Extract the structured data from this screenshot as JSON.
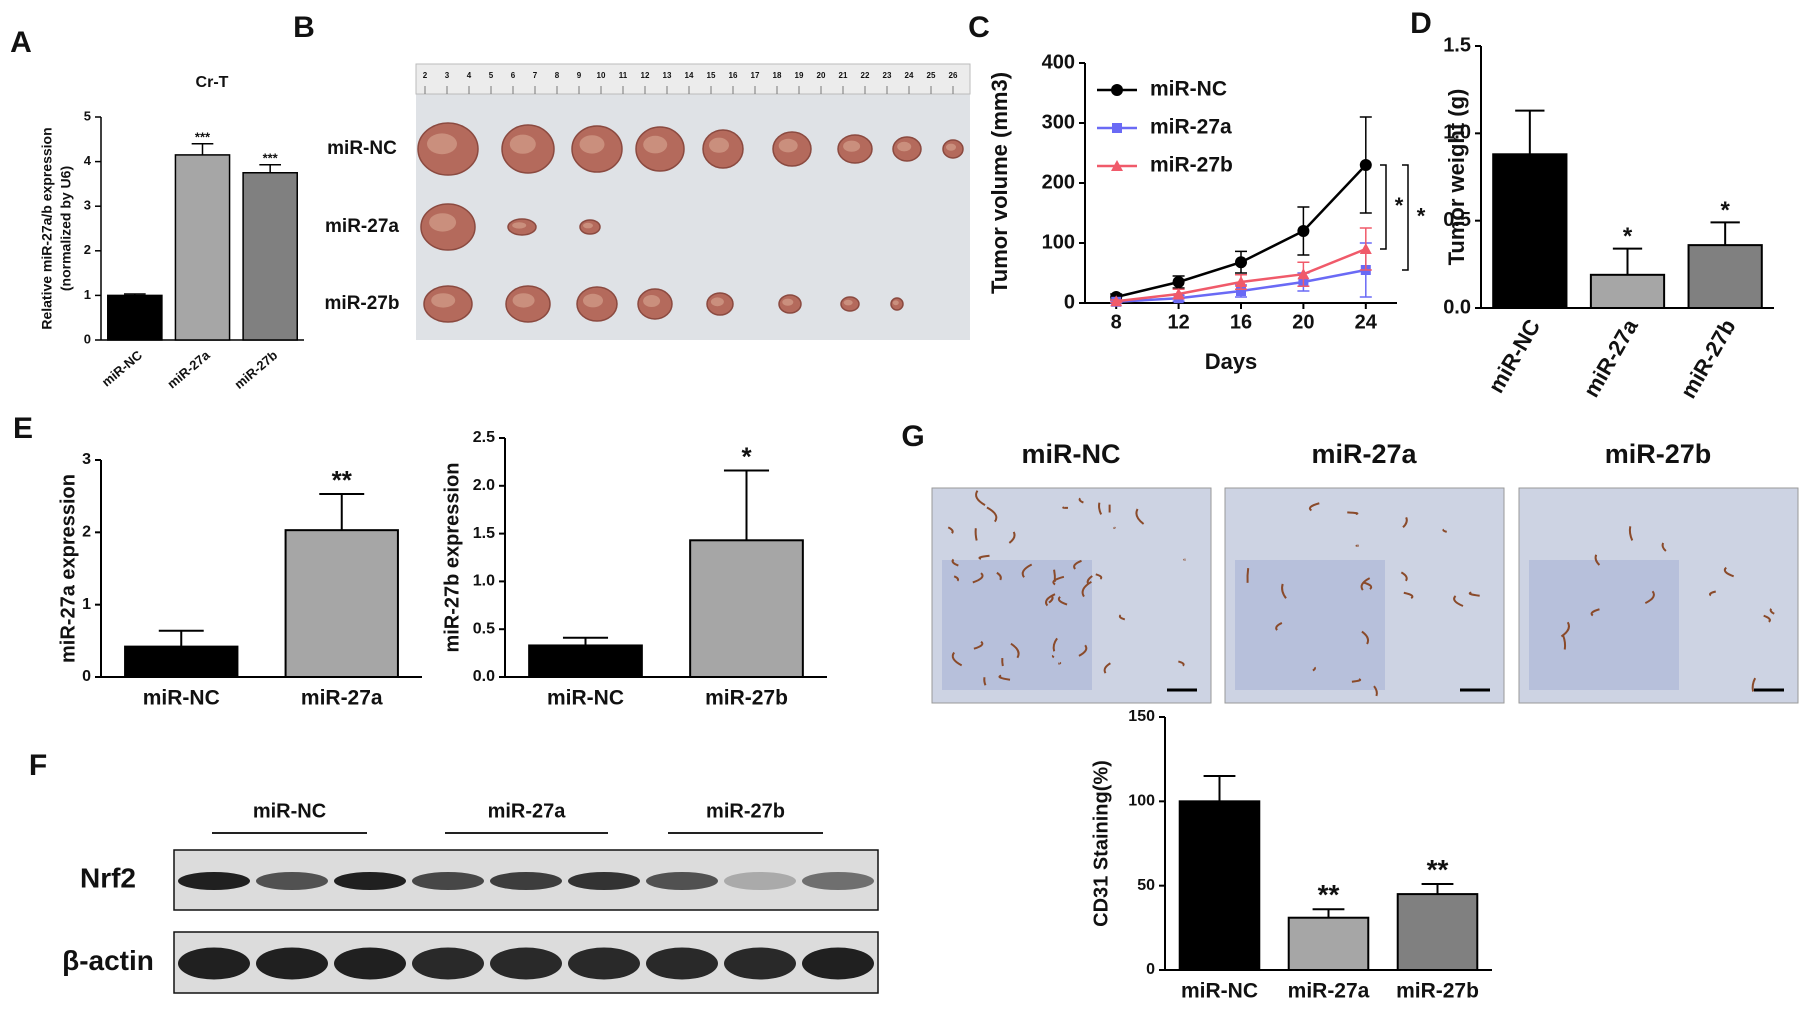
{
  "panel_labels": [
    "A",
    "B",
    "C",
    "D",
    "E",
    "F",
    "G"
  ],
  "tumor_photo": {
    "ruler": [
      2,
      3,
      4,
      5,
      6,
      7,
      8,
      9,
      10,
      11,
      12,
      13,
      14,
      15,
      16,
      17,
      18,
      19,
      20,
      21,
      22,
      23,
      24,
      25,
      26
    ],
    "rows": [
      "miR-NC",
      "miR-27a",
      "miR-27b"
    ]
  },
  "western_blot": {
    "groups": [
      "miR-NC",
      "miR-27a",
      "miR-27b"
    ],
    "proteins": [
      "Nrf2",
      "β-actin"
    ]
  },
  "ihc_images": {
    "columns": [
      "miR-NC",
      "miR-27a",
      "miR-27b"
    ]
  },
  "chart_data": [
    {
      "type": "bar",
      "title": "Cr-T",
      "ylabel": [
        "Relative miR-27a/b expression",
        "(normalized by U6)"
      ],
      "categories": [
        "miR-NC",
        "miR-27a",
        "miR-27b"
      ],
      "values": [
        1.0,
        4.15,
        3.75
      ],
      "errors": [
        0.03,
        0.25,
        0.18
      ],
      "annotations": [
        null,
        "***",
        "***"
      ],
      "colors": [
        "#000000",
        "#a6a6a6",
        "#808080"
      ],
      "ylim": [
        0,
        5
      ],
      "yticks": [
        0,
        1,
        2,
        3,
        4,
        5
      ]
    },
    {
      "type": "line",
      "xlabel": "Days",
      "ylabel": "Tumor volume (mm3)",
      "x": [
        8,
        12,
        16,
        20,
        24
      ],
      "xlim": [
        6,
        26
      ],
      "xticks": [
        8,
        12,
        16,
        20,
        24
      ],
      "ylim": [
        0,
        400
      ],
      "yticks": [
        0,
        100,
        200,
        300,
        400
      ],
      "series": [
        {
          "name": "miR-NC",
          "color": "#000000",
          "marker": "circle",
          "values": [
            10,
            35,
            68,
            120,
            230
          ],
          "errors": [
            5,
            10,
            18,
            40,
            80
          ]
        },
        {
          "name": "miR-27a",
          "color": "#6a6af5",
          "marker": "square",
          "values": [
            2,
            8,
            20,
            35,
            55
          ],
          "errors": [
            2,
            5,
            10,
            15,
            45
          ]
        },
        {
          "name": "miR-27b",
          "color": "#f05a6a",
          "marker": "triangle",
          "values": [
            3,
            15,
            35,
            48,
            90
          ],
          "errors": [
            2,
            8,
            12,
            20,
            35
          ]
        }
      ],
      "significance": [
        "*",
        "*"
      ]
    },
    {
      "type": "bar",
      "ylabel": "Tumor weight (g)",
      "categories": [
        "miR-NC",
        "miR-27a",
        "miR-27b"
      ],
      "values": [
        0.88,
        0.19,
        0.36
      ],
      "errors": [
        0.25,
        0.15,
        0.13
      ],
      "annotations": [
        null,
        "*",
        "*"
      ],
      "colors": [
        "#000000",
        "#a6a6a6",
        "#808080"
      ],
      "ylim": [
        0,
        1.5
      ],
      "yticks": [
        {
          "value": 0,
          "label": "0.0"
        },
        0.5,
        {
          "value": 1,
          "label": "1.0"
        },
        1.5
      ]
    },
    {
      "type": "bar",
      "ylabel": "miR-27a expression",
      "categories": [
        "miR-NC",
        "miR-27a"
      ],
      "values": [
        0.42,
        2.03
      ],
      "errors": [
        0.22,
        0.5
      ],
      "annotations": [
        null,
        "**"
      ],
      "colors": [
        "#000000",
        "#a6a6a6"
      ],
      "ylim": [
        0,
        3
      ],
      "yticks": [
        0,
        1,
        2,
        3
      ]
    },
    {
      "type": "bar",
      "ylabel": "miR-27b expression",
      "categories": [
        "miR-NC",
        "miR-27b"
      ],
      "values": [
        0.33,
        1.43
      ],
      "errors": [
        0.08,
        0.73
      ],
      "annotations": [
        null,
        "*"
      ],
      "colors": [
        "#000000",
        "#a6a6a6"
      ],
      "ylim": [
        0,
        2.5
      ],
      "yticks": [
        {
          "value": 0,
          "label": "0.0"
        },
        0.5,
        {
          "value": 1,
          "label": "1.0"
        },
        1.5,
        {
          "value": 2,
          "label": "2.0"
        },
        2.5
      ]
    },
    {
      "type": "bar",
      "ylabel": "CD31 Staining(%)",
      "categories": [
        "miR-NC",
        "miR-27a",
        "miR-27b"
      ],
      "values": [
        100,
        31,
        45
      ],
      "errors": [
        15,
        5,
        6
      ],
      "annotations": [
        null,
        "**",
        "**"
      ],
      "colors": [
        "#000000",
        "#a6a6a6",
        "#808080"
      ],
      "ylim": [
        0,
        150
      ],
      "yticks": [
        0,
        50,
        100,
        150
      ]
    }
  ]
}
